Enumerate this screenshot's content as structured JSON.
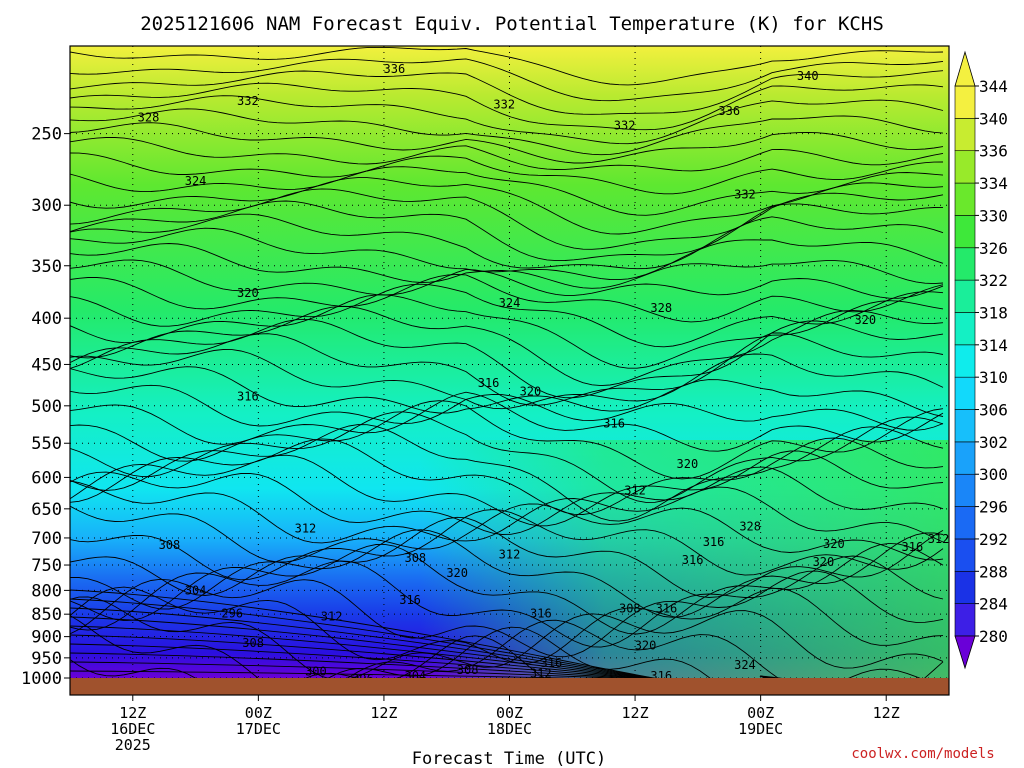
{
  "chart_data": {
    "type": "heatmap",
    "title": "2025121606 NAM Forecast Equiv. Potential Temperature (K) for KCHS",
    "xlabel": "Forecast Time (UTC)",
    "ylabel": "",
    "credit": "coolwx.com/models",
    "y_axis": {
      "scale": "log-pressure",
      "range": [
        1000,
        200
      ],
      "ticks": [
        "250",
        "300",
        "350",
        "400",
        "450",
        "500",
        "550",
        "600",
        "650",
        "700",
        "750",
        "800",
        "850",
        "900",
        "950",
        "1000"
      ]
    },
    "x_axis": {
      "range_hours": [
        0,
        84
      ],
      "ticks": [
        {
          "hour": 6,
          "lines": [
            "12Z",
            "16DEC",
            "2025"
          ]
        },
        {
          "hour": 18,
          "lines": [
            "00Z",
            "17DEC"
          ]
        },
        {
          "hour": 30,
          "lines": [
            "12Z"
          ]
        },
        {
          "hour": 42,
          "lines": [
            "00Z",
            "18DEC"
          ]
        },
        {
          "hour": 54,
          "lines": [
            "12Z"
          ]
        },
        {
          "hour": 66,
          "lines": [
            "00Z",
            "19DEC"
          ]
        },
        {
          "hour": 78,
          "lines": [
            "12Z"
          ]
        }
      ]
    },
    "grid": true,
    "colorbar": {
      "placement": "right",
      "unit": "K",
      "levels": [
        "280",
        "284",
        "288",
        "292",
        "296",
        "300",
        "302",
        "306",
        "310",
        "314",
        "318",
        "322",
        "326",
        "330",
        "334",
        "336",
        "340",
        "344"
      ],
      "colors": [
        "#6a00d8",
        "#3d1fe6",
        "#1a32e6",
        "#1a4ff0",
        "#1a6af4",
        "#1a86f8",
        "#1aa2fa",
        "#17bffb",
        "#12d9fb",
        "#0fecec",
        "#14f0c4",
        "#1aee9a",
        "#24ea6a",
        "#3ee83a",
        "#6ae82c",
        "#98ea2a",
        "#c8ec30",
        "#f4f040"
      ],
      "extend": "both"
    },
    "contour_labels": [
      {
        "text": "336",
        "hour": 31,
        "p": 212
      },
      {
        "text": "340",
        "hour": 70.5,
        "p": 216
      },
      {
        "text": "332",
        "hour": 17,
        "p": 230
      },
      {
        "text": "332",
        "hour": 41.5,
        "p": 232
      },
      {
        "text": "332",
        "hour": 53,
        "p": 245
      },
      {
        "text": "336",
        "hour": 63,
        "p": 236
      },
      {
        "text": "328",
        "hour": 7.5,
        "p": 240
      },
      {
        "text": "324",
        "hour": 12,
        "p": 282
      },
      {
        "text": "332",
        "hour": 64.5,
        "p": 292
      },
      {
        "text": "320",
        "hour": 17,
        "p": 375
      },
      {
        "text": "324",
        "hour": 42,
        "p": 385
      },
      {
        "text": "328",
        "hour": 56.5,
        "p": 390
      },
      {
        "text": "320",
        "hour": 76,
        "p": 402
      },
      {
        "text": "316",
        "hour": 40,
        "p": 472
      },
      {
        "text": "320",
        "hour": 44,
        "p": 482
      },
      {
        "text": "316",
        "hour": 17,
        "p": 488
      },
      {
        "text": "316",
        "hour": 52,
        "p": 523
      },
      {
        "text": "320",
        "hour": 59,
        "p": 580
      },
      {
        "text": "312",
        "hour": 54,
        "p": 620
      },
      {
        "text": "312",
        "hour": 22.5,
        "p": 683
      },
      {
        "text": "328",
        "hour": 65,
        "p": 680
      },
      {
        "text": "316",
        "hour": 61.5,
        "p": 707
      },
      {
        "text": "320",
        "hour": 73,
        "p": 711
      },
      {
        "text": "316",
        "hour": 80.5,
        "p": 716
      },
      {
        "text": "312",
        "hour": 83,
        "p": 702
      },
      {
        "text": "308",
        "hour": 9.5,
        "p": 713
      },
      {
        "text": "308",
        "hour": 33,
        "p": 737
      },
      {
        "text": "312",
        "hour": 42,
        "p": 730
      },
      {
        "text": "316",
        "hour": 59.5,
        "p": 740
      },
      {
        "text": "320",
        "hour": 72,
        "p": 744
      },
      {
        "text": "320",
        "hour": 37,
        "p": 765
      },
      {
        "text": "304",
        "hour": 12,
        "p": 800
      },
      {
        "text": "316",
        "hour": 32.5,
        "p": 820
      },
      {
        "text": "296",
        "hour": 15.5,
        "p": 848
      },
      {
        "text": "312",
        "hour": 25,
        "p": 855
      },
      {
        "text": "316",
        "hour": 45,
        "p": 848
      },
      {
        "text": "308",
        "hour": 53.5,
        "p": 838
      },
      {
        "text": "316",
        "hour": 57,
        "p": 838
      },
      {
        "text": "308",
        "hour": 17.5,
        "p": 915
      },
      {
        "text": "320",
        "hour": 55,
        "p": 921
      },
      {
        "text": "316",
        "hour": 46,
        "p": 963
      },
      {
        "text": "324",
        "hour": 64.5,
        "p": 968
      },
      {
        "text": "300",
        "hour": 23.5,
        "p": 983
      },
      {
        "text": "308",
        "hour": 38,
        "p": 980
      },
      {
        "text": "312",
        "hour": 45,
        "p": 988
      },
      {
        "text": "304",
        "hour": 33,
        "p": 995
      },
      {
        "text": "316",
        "hour": 56.5,
        "p": 995
      },
      {
        "text": "296",
        "hour": 28,
        "p": 1003
      }
    ]
  }
}
